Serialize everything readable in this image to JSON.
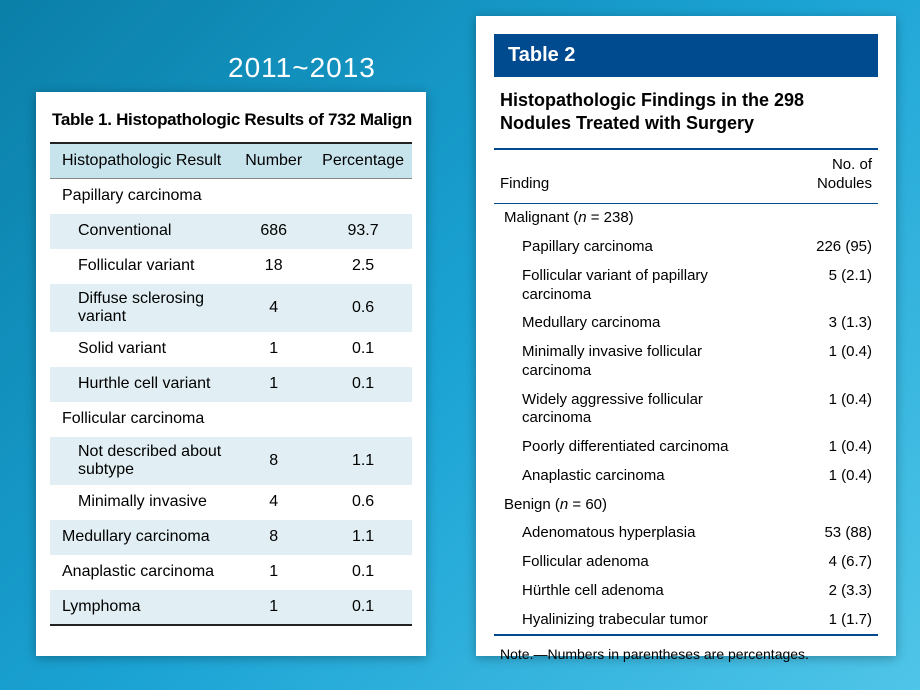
{
  "year_label": "2011~2013",
  "table1": {
    "title": "Table 1. Histopathologic Results of 732 Malign",
    "columns": {
      "c1": "Histopathologic Result",
      "c2": "Number",
      "c3": "Percentage"
    },
    "header_bg": "#c7e3ec",
    "alt_row_bg": "#e1eff4",
    "border_color": "#222222",
    "rows": [
      {
        "label": "Papillary carcinoma",
        "number": "",
        "percentage": "",
        "indent": 0,
        "alt": false
      },
      {
        "label": "Conventional",
        "number": "686",
        "percentage": "93.7",
        "indent": 1,
        "alt": true
      },
      {
        "label": "Follicular variant",
        "number": "18",
        "percentage": "2.5",
        "indent": 1,
        "alt": false
      },
      {
        "label": "Diffuse sclerosing variant",
        "number": "4",
        "percentage": "0.6",
        "indent": 1,
        "alt": true
      },
      {
        "label": "Solid variant",
        "number": "1",
        "percentage": "0.1",
        "indent": 1,
        "alt": false
      },
      {
        "label": "Hurthle cell variant",
        "number": "1",
        "percentage": "0.1",
        "indent": 1,
        "alt": true
      },
      {
        "label": "Follicular carcinoma",
        "number": "",
        "percentage": "",
        "indent": 0,
        "alt": false
      },
      {
        "label": "Not described about subtype",
        "number": "8",
        "percentage": "1.1",
        "indent": 1,
        "alt": true
      },
      {
        "label": "Minimally invasive",
        "number": "4",
        "percentage": "0.6",
        "indent": 1,
        "alt": false
      },
      {
        "label": "Medullary carcinoma",
        "number": "8",
        "percentage": "1.1",
        "indent": 0,
        "alt": true
      },
      {
        "label": "Anaplastic carcinoma",
        "number": "1",
        "percentage": "0.1",
        "indent": 0,
        "alt": false
      },
      {
        "label": "Lymphoma",
        "number": "1",
        "percentage": "0.1",
        "indent": 0,
        "alt": true
      }
    ]
  },
  "table2": {
    "header": "Table 2",
    "subtitle": "Histopathologic Findings in the 298 Nodules Treated with Surgery",
    "columns": {
      "c1": "Finding",
      "c2": "No. of\nNodules"
    },
    "header_bg": "#004a8f",
    "border_color": "#004a8f",
    "note": "Note.—Numbers in parentheses are percentages.",
    "rows": [
      {
        "label": "Malignant (n = 238)",
        "value": "",
        "type": "group"
      },
      {
        "label": "Papillary carcinoma",
        "value": "226 (95)",
        "type": "item"
      },
      {
        "label": "Follicular variant of papillary\ncarcinoma",
        "value": "5 (2.1)",
        "type": "item"
      },
      {
        "label": "Medullary carcinoma",
        "value": "3 (1.3)",
        "type": "item"
      },
      {
        "label": "Minimally invasive follicular\ncarcinoma",
        "value": "1 (0.4)",
        "type": "item"
      },
      {
        "label": "Widely aggressive follicular\ncarcinoma",
        "value": "1 (0.4)",
        "type": "item"
      },
      {
        "label": "Poorly differentiated carcinoma",
        "value": "1 (0.4)",
        "type": "item"
      },
      {
        "label": "Anaplastic carcinoma",
        "value": "1 (0.4)",
        "type": "item"
      },
      {
        "label": "Benign (n = 60)",
        "value": "",
        "type": "group"
      },
      {
        "label": "Adenomatous hyperplasia",
        "value": "53 (88)",
        "type": "item"
      },
      {
        "label": "Follicular adenoma",
        "value": "4 (6.7)",
        "type": "item"
      },
      {
        "label": "Hürthle cell adenoma",
        "value": "2 (3.3)",
        "type": "item"
      },
      {
        "label": "Hyalinizing trabecular tumor",
        "value": "1 (1.7)",
        "type": "item"
      }
    ]
  },
  "background_gradient": [
    "#0a7fa8",
    "#1ba3d4",
    "#4fc5e8"
  ]
}
